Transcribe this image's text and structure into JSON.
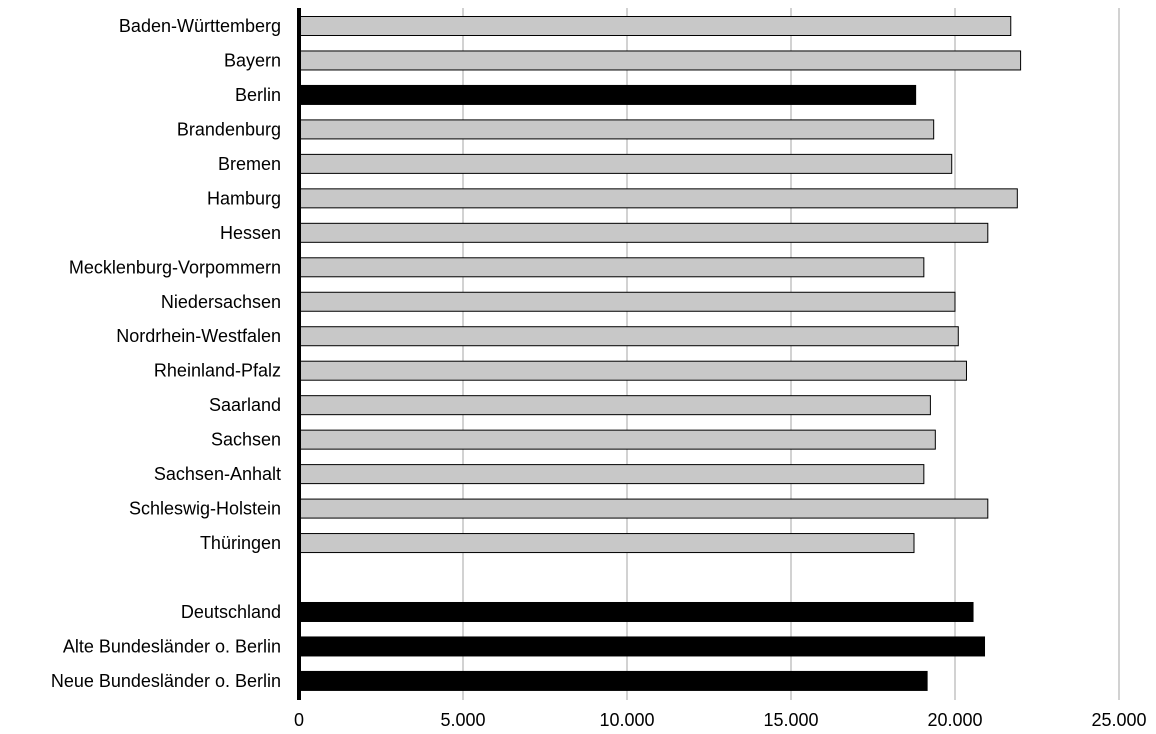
{
  "chart_data": {
    "type": "bar",
    "orientation": "horizontal",
    "grid": true,
    "xlim": [
      0,
      25000
    ],
    "ticks": [
      0,
      5000,
      10000,
      15000,
      20000,
      25000
    ],
    "tick_labels": [
      "0",
      "5.000",
      "10.000",
      "15.000",
      "20.000",
      "25.000"
    ],
    "colors": {
      "state": "#c8c8c8",
      "highlight": "#000000",
      "grid": "#a6a6a6"
    },
    "categories": [
      {
        "label": "Baden-Württemberg",
        "value": 21700,
        "highlight": false
      },
      {
        "label": "Bayern",
        "value": 22000,
        "highlight": false
      },
      {
        "label": "Berlin",
        "value": 18800,
        "highlight": true
      },
      {
        "label": "Brandenburg",
        "value": 19350,
        "highlight": false
      },
      {
        "label": "Bremen",
        "value": 19900,
        "highlight": false
      },
      {
        "label": "Hamburg",
        "value": 21900,
        "highlight": false
      },
      {
        "label": "Hessen",
        "value": 21000,
        "highlight": false
      },
      {
        "label": "Mecklenburg-Vorpommern",
        "value": 19050,
        "highlight": false
      },
      {
        "label": "Niedersachsen",
        "value": 20000,
        "highlight": false
      },
      {
        "label": "Nordrhein-Westfalen",
        "value": 20100,
        "highlight": false
      },
      {
        "label": "Rheinland-Pfalz",
        "value": 20350,
        "highlight": false
      },
      {
        "label": "Saarland",
        "value": 19250,
        "highlight": false
      },
      {
        "label": "Sachsen",
        "value": 19400,
        "highlight": false
      },
      {
        "label": "Sachsen-Anhalt",
        "value": 19050,
        "highlight": false
      },
      {
        "label": "Schleswig-Holstein",
        "value": 21000,
        "highlight": false
      },
      {
        "label": "Thüringen",
        "value": 18750,
        "highlight": false
      },
      {
        "label": "",
        "value": null,
        "highlight": false
      },
      {
        "label": "Deutschland",
        "value": 20550,
        "highlight": true
      },
      {
        "label": "Alte Bundesländer o. Berlin",
        "value": 20900,
        "highlight": true
      },
      {
        "label": "Neue Bundesländer o. Berlin",
        "value": 19150,
        "highlight": true
      }
    ]
  }
}
